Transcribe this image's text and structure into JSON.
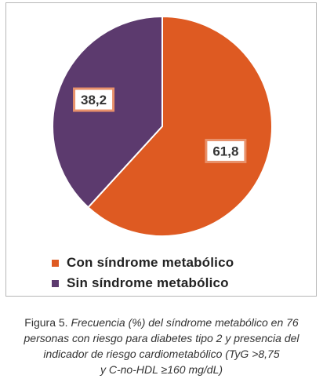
{
  "chart_data": {
    "type": "pie",
    "values": [
      61.8,
      38.2
    ],
    "data_labels": [
      "61,8",
      "38,2"
    ],
    "legend": [
      {
        "label": "Con síndrome metabólico",
        "color": "#de5a22"
      },
      {
        "label": "Sin síndrome metabólico",
        "color": "#5c3a6e"
      }
    ],
    "legend_position": "bottom",
    "label_box_border": "#e8916b",
    "outline_color": "#ffffff"
  },
  "caption": {
    "lead": "Figura 5. ",
    "line1": "Frecuencia (%) del síndrome metabólico en 76",
    "line2": "personas con riesgo para diabetes tipo 2 y presencia del",
    "line3": "indicador de riesgo cardiometabólico (TyG >8,75",
    "line4": "y C-no-HDL ≥160 mg/dL)"
  }
}
